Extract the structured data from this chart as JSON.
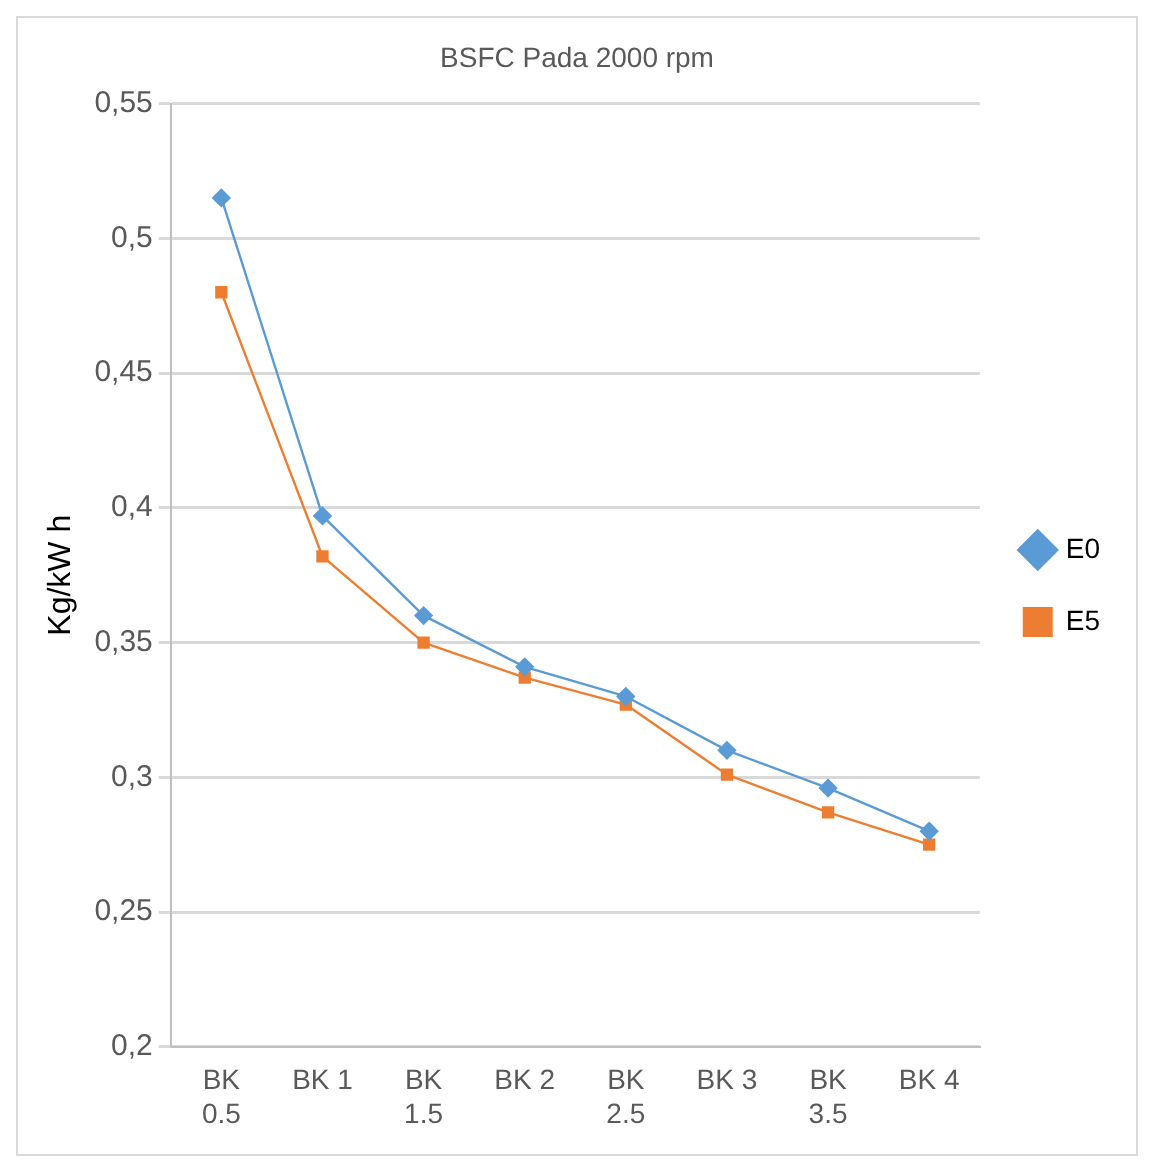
{
  "chart_data": {
    "type": "line",
    "title": "BSFC Pada 2000 rpm",
    "ylabel": "Kg/kW h",
    "categories": [
      "BK 0.5",
      "BK 1",
      "BK 1.5",
      "BK 2",
      "BK 2.5",
      "BK 3",
      "BK 3.5",
      "BK 4"
    ],
    "series": [
      {
        "name": "E0",
        "color": "#5b9bd5",
        "marker": "diamond",
        "values": [
          0.515,
          0.397,
          0.36,
          0.341,
          0.33,
          0.31,
          0.296,
          0.28
        ]
      },
      {
        "name": "E5",
        "color": "#ed7d31",
        "marker": "square",
        "values": [
          0.48,
          0.382,
          0.35,
          0.337,
          0.327,
          0.301,
          0.287,
          0.275
        ]
      }
    ],
    "ylim": [
      0.2,
      0.55
    ],
    "yticks": [
      {
        "value": 0.2,
        "label": "0,2"
      },
      {
        "value": 0.25,
        "label": "0,25"
      },
      {
        "value": 0.3,
        "label": "0,3"
      },
      {
        "value": 0.35,
        "label": "0,35"
      },
      {
        "value": 0.4,
        "label": "0,4"
      },
      {
        "value": 0.45,
        "label": "0,45"
      },
      {
        "value": 0.5,
        "label": "0,5"
      },
      {
        "value": 0.55,
        "label": "0,55"
      }
    ],
    "grid": "y",
    "legend": "right"
  }
}
